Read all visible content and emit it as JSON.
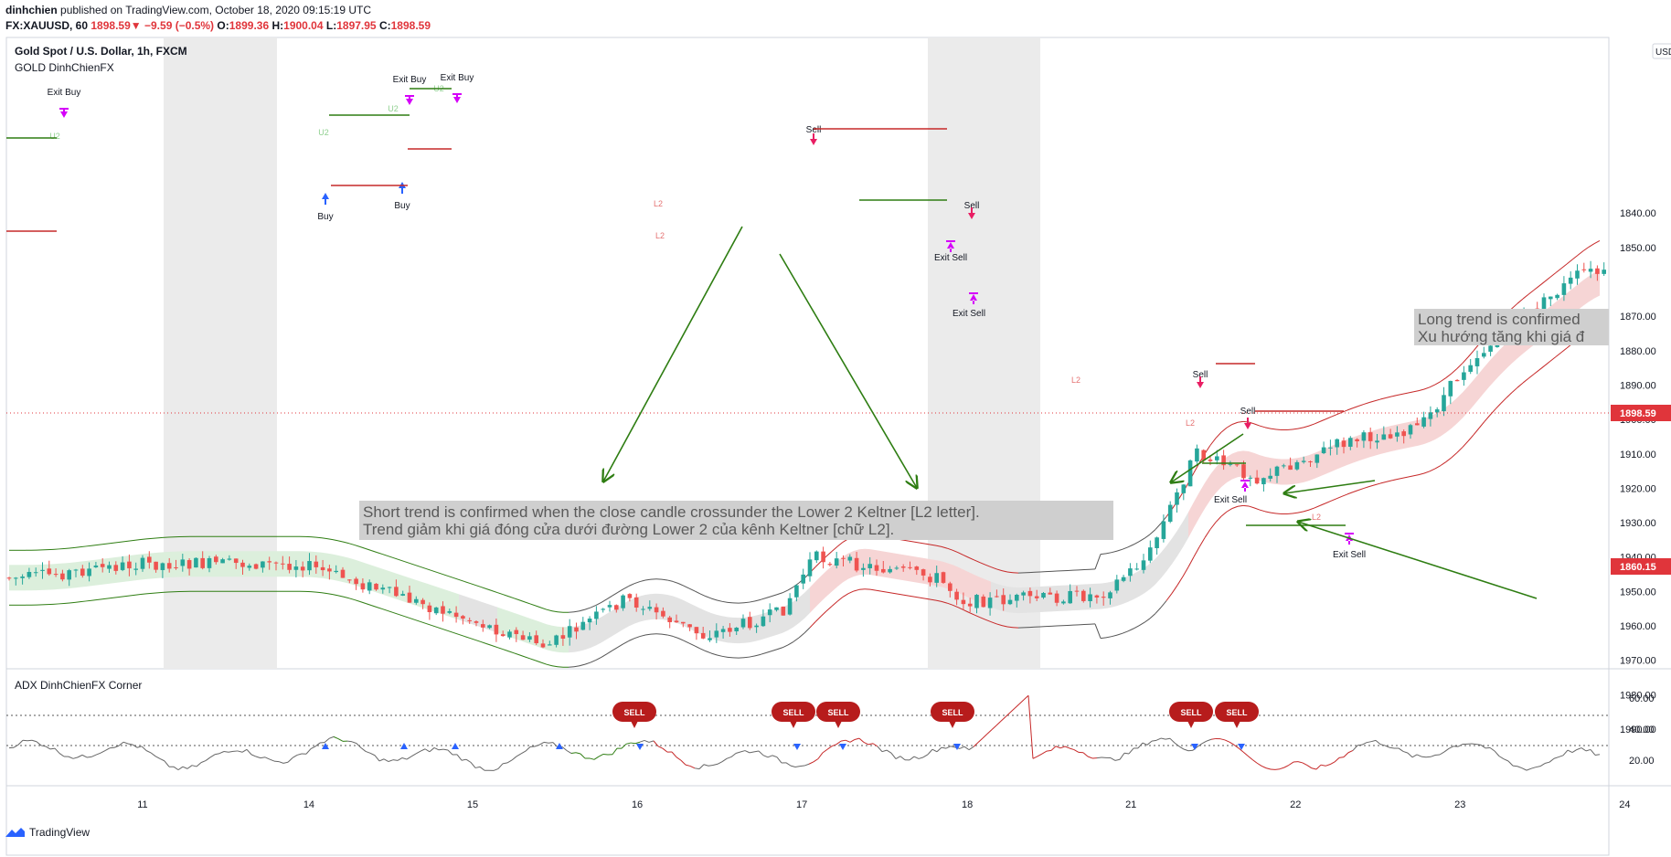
{
  "header": {
    "author": "dinhchien",
    "published": "published on TradingView.com, October 18, 2020 09:15:19 UTC",
    "symbol": "FX:XAUUSD, 60",
    "last": "1898.59",
    "change": "−9.59 (−0.5%)",
    "o_label": "O:",
    "o": "1899.36",
    "h_label": "H:",
    "h": "1900.04",
    "l_label": "L:",
    "l": "1897.95",
    "c_label": "C:",
    "c": "1898.59"
  },
  "pane_title": "Gold Spot / U.S. Dollar, 1h, FXCM",
  "indicator_title": "GOLD DinhChienFX",
  "adx_title": "ADX DinhChienFX Corner",
  "currency_badge": "USD",
  "price_axis": {
    "ticks": [
      "1990.00",
      "1980.00",
      "1970.00",
      "1960.00",
      "1950.00",
      "1940.00",
      "1930.00",
      "1920.00",
      "1910.00",
      "1900.00",
      "1890.00",
      "1880.00",
      "1870.00",
      "1850.00",
      "1840.00"
    ],
    "last_price_label": "1898.59",
    "second_label": "1860.15"
  },
  "adx_axis": {
    "ticks": [
      "60.00",
      "40.00",
      "20.00"
    ]
  },
  "time_axis": {
    "ticks": [
      "11",
      "14",
      "15",
      "16",
      "17",
      "18",
      "21",
      "22",
      "23",
      "24"
    ]
  },
  "annotations": {
    "short_en": "Short trend is confirmed when the close candle crossunder the Lower 2 Keltner [L2 letter].",
    "short_vi": "Trend giảm khi giá đóng cửa dưới đường Lower 2 của kênh Keltner [chữ L2].",
    "long_en": "Long trend is confirmed",
    "long_vi": "Xu hướng tăng khi giá đ"
  },
  "signals": {
    "exit_buy": "Exit Buy",
    "buy": "Buy",
    "sell": "Sell",
    "exit_sell": "Exit Sell",
    "u2": "U2",
    "l2": "L2",
    "adx_sell": "SELL"
  },
  "footer": {
    "brand": "TradingView"
  },
  "colors": {
    "up": "#26a69a",
    "down": "#ef5350",
    "keltner": "#c62828",
    "upper_fill": "#e8f5e9",
    "lower_fill": "#f8d7d7",
    "arrow": "#2e7d12"
  },
  "chart_data": {
    "type": "candlestick",
    "title": "Gold Spot / U.S. Dollar, 1h, FXCM",
    "x": [
      "11",
      "14",
      "15",
      "16",
      "17",
      "18",
      "21",
      "22",
      "23",
      "24"
    ],
    "ylim": [
      1837,
      1992
    ],
    "approx_close_path": [
      {
        "x": "10",
        "y": 1946
      },
      {
        "x": "11",
        "y": 1942
      },
      {
        "x": "14",
        "y": 1942
      },
      {
        "x": "14.5",
        "y": 1950
      },
      {
        "x": "15",
        "y": 1958
      },
      {
        "x": "15.5",
        "y": 1966
      },
      {
        "x": "16",
        "y": 1952
      },
      {
        "x": "16.5",
        "y": 1963
      },
      {
        "x": "17",
        "y": 1956
      },
      {
        "x": "17.2",
        "y": 1940
      },
      {
        "x": "18",
        "y": 1946
      },
      {
        "x": "18.5",
        "y": 1953
      },
      {
        "x": "21",
        "y": 1951
      },
      {
        "x": "21.3",
        "y": 1940
      },
      {
        "x": "21.6",
        "y": 1910
      },
      {
        "x": "22",
        "y": 1917
      },
      {
        "x": "22.5",
        "y": 1907
      },
      {
        "x": "23",
        "y": 1902
      },
      {
        "x": "23.3",
        "y": 1883
      },
      {
        "x": "23.6",
        "y": 1872
      },
      {
        "x": "24",
        "y": 1857
      },
      {
        "x": "24.5",
        "y": 1860
      }
    ],
    "adx_ylim": [
      12,
      70
    ]
  }
}
